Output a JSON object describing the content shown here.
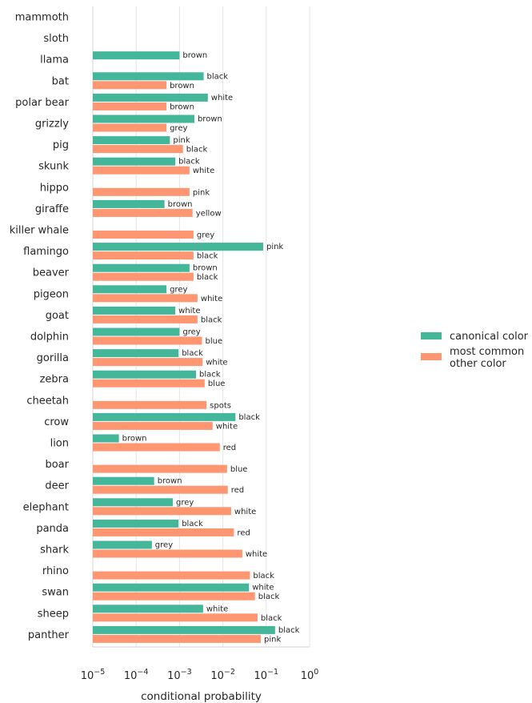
{
  "chart_data": {
    "type": "bar",
    "orientation": "horizontal",
    "xscale": "log",
    "xlim": [
      1e-05,
      1
    ],
    "xticks": [
      1e-05,
      0.0001,
      0.001,
      0.01,
      0.1,
      1
    ],
    "xtick_labels": [
      {
        "base": "10",
        "exp": "−5"
      },
      {
        "base": "10",
        "exp": "−4"
      },
      {
        "base": "10",
        "exp": "−3"
      },
      {
        "base": "10",
        "exp": "−2"
      },
      {
        "base": "10",
        "exp": "−1"
      },
      {
        "base": "10",
        "exp": "0"
      }
    ],
    "xlabel": "conditional probability",
    "ylabel": "",
    "grid": true,
    "legend_position": "right",
    "series_colors": {
      "canonical": "#44b69a",
      "other": "#fe9671"
    },
    "legend": [
      "canonical color",
      "most common other color"
    ],
    "rows": [
      {
        "animal": "mammoth",
        "canonical": null,
        "other": null
      },
      {
        "animal": "sloth",
        "canonical": null,
        "other": null
      },
      {
        "animal": "llama",
        "canonical": {
          "value": 0.001,
          "color": "brown"
        },
        "other": null
      },
      {
        "animal": "bat",
        "canonical": {
          "value": 0.0036,
          "color": "black"
        },
        "other": {
          "value": 0.0005,
          "color": "brown"
        }
      },
      {
        "animal": "polar bear",
        "canonical": {
          "value": 0.0045,
          "color": "white"
        },
        "other": {
          "value": 0.0005,
          "color": "brown"
        }
      },
      {
        "animal": "grizzly",
        "canonical": {
          "value": 0.0022,
          "color": "brown"
        },
        "other": {
          "value": 0.0005,
          "color": "grey"
        }
      },
      {
        "animal": "pig",
        "canonical": {
          "value": 0.0006,
          "color": "pink"
        },
        "other": {
          "value": 0.0012,
          "color": "black"
        }
      },
      {
        "animal": "skunk",
        "canonical": {
          "value": 0.0008,
          "color": "black"
        },
        "other": {
          "value": 0.0017,
          "color": "white"
        }
      },
      {
        "animal": "hippo",
        "canonical": null,
        "other": {
          "value": 0.0017,
          "color": "pink"
        }
      },
      {
        "animal": "giraffe",
        "canonical": {
          "value": 0.00045,
          "color": "brown"
        },
        "other": {
          "value": 0.002,
          "color": "yellow"
        }
      },
      {
        "animal": "killer whale",
        "canonical": null,
        "other": {
          "value": 0.0021,
          "color": "grey"
        }
      },
      {
        "animal": "flamingo",
        "canonical": {
          "value": 0.085,
          "color": "pink"
        },
        "other": {
          "value": 0.0021,
          "color": "black"
        }
      },
      {
        "animal": "beaver",
        "canonical": {
          "value": 0.0017,
          "color": "brown"
        },
        "other": {
          "value": 0.0021,
          "color": "black"
        }
      },
      {
        "animal": "pigeon",
        "canonical": {
          "value": 0.0005,
          "color": "grey"
        },
        "other": {
          "value": 0.0026,
          "color": "white"
        }
      },
      {
        "animal": "goat",
        "canonical": {
          "value": 0.0008,
          "color": "white"
        },
        "other": {
          "value": 0.0026,
          "color": "black"
        }
      },
      {
        "animal": "dolphin",
        "canonical": {
          "value": 0.001,
          "color": "grey"
        },
        "other": {
          "value": 0.0033,
          "color": "blue"
        }
      },
      {
        "animal": "gorilla",
        "canonical": {
          "value": 0.00095,
          "color": "black"
        },
        "other": {
          "value": 0.0034,
          "color": "white"
        }
      },
      {
        "animal": "zebra",
        "canonical": {
          "value": 0.0024,
          "color": "black"
        },
        "other": {
          "value": 0.0038,
          "color": "blue"
        }
      },
      {
        "animal": "cheetah",
        "canonical": null,
        "other": {
          "value": 0.0042,
          "color": "spots"
        }
      },
      {
        "animal": "crow",
        "canonical": {
          "value": 0.0195,
          "color": "black"
        },
        "other": {
          "value": 0.0058,
          "color": "white"
        }
      },
      {
        "animal": "lion",
        "canonical": {
          "value": 4e-05,
          "color": "brown"
        },
        "other": {
          "value": 0.0085,
          "color": "red"
        }
      },
      {
        "animal": "boar",
        "canonical": null,
        "other": {
          "value": 0.0125,
          "color": "blue"
        }
      },
      {
        "animal": "deer",
        "canonical": {
          "value": 0.00026,
          "color": "brown"
        },
        "other": {
          "value": 0.013,
          "color": "red"
        }
      },
      {
        "animal": "elephant",
        "canonical": {
          "value": 0.0007,
          "color": "grey"
        },
        "other": {
          "value": 0.0155,
          "color": "white"
        }
      },
      {
        "animal": "panda",
        "canonical": {
          "value": 0.00095,
          "color": "black"
        },
        "other": {
          "value": 0.018,
          "color": "red"
        }
      },
      {
        "animal": "shark",
        "canonical": {
          "value": 0.00023,
          "color": "grey"
        },
        "other": {
          "value": 0.028,
          "color": "white"
        }
      },
      {
        "animal": "rhino",
        "canonical": null,
        "other": {
          "value": 0.042,
          "color": "black"
        }
      },
      {
        "animal": "swan",
        "canonical": {
          "value": 0.04,
          "color": "white"
        },
        "other": {
          "value": 0.055,
          "color": "black"
        }
      },
      {
        "animal": "sheep",
        "canonical": {
          "value": 0.0035,
          "color": "white"
        },
        "other": {
          "value": 0.063,
          "color": "black"
        }
      },
      {
        "animal": "panther",
        "canonical": {
          "value": 0.16,
          "color": "black"
        },
        "other": {
          "value": 0.075,
          "color": "pink"
        }
      }
    ]
  }
}
